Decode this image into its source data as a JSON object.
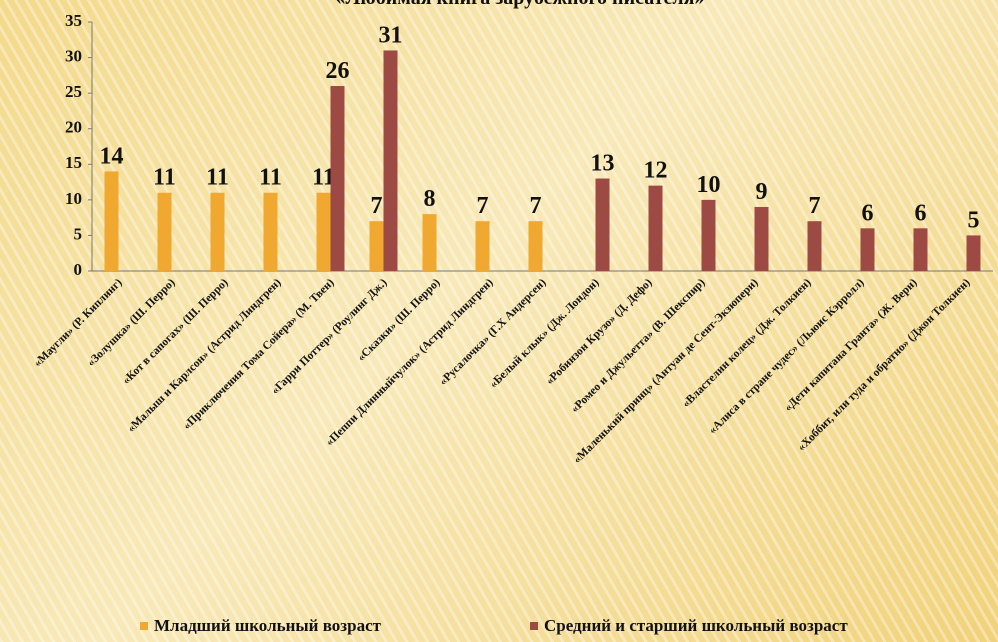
{
  "chart_data": {
    "type": "bar",
    "title": "«Любимая книга зарубежного писателя»",
    "categories": [
      "«Маугли» (Р. Киплинг)",
      "«Золушка» (Ш. Перро)",
      "«Кот в сапогах» (Ш. Перро)",
      "«Малыш и Карлсон» (Астрид Линдгрен)",
      "«Приключения Тома Сойера» (М. Твен)",
      "«Гарри Поттер» (Роулинг Дж.)",
      "«Сказки» (Ш. Перро)",
      "«Пеппи Длинныйчулок» (Астрид Линдгрен)",
      "«Русалочка» (Г.Х Андерсен)",
      "«Белый клык» (Дж. Лондон)",
      "«Робинзон Крузо» (Д. Дефо)",
      "«Ромео и Джульетта» (В. Шекспир)",
      "«Маленький принц» (Антуан де Сент-Экзюпери)",
      "«Властелин колец» (Дж. Толкиен)",
      "«Алиса в стране чудес» (Льюис Кэрролл)",
      "«Дети капитана Гранта» (Ж. Верн)",
      "«Хоббит, или туда и обратно» (Джон Толкиен)"
    ],
    "series": [
      {
        "name": "Младший школьный возраст",
        "color": "#f0a830",
        "values": [
          14,
          11,
          11,
          11,
          11,
          7,
          8,
          7,
          7,
          null,
          null,
          null,
          null,
          null,
          null,
          null,
          null
        ]
      },
      {
        "name": "Средний и старший школьный возраст",
        "color": "#9e4a44",
        "values": [
          null,
          null,
          null,
          null,
          26,
          31,
          null,
          null,
          null,
          13,
          12,
          10,
          9,
          7,
          6,
          6,
          5
        ]
      }
    ],
    "ylim": [
      0,
      35
    ],
    "yticks": [
      0,
      5,
      10,
      15,
      20,
      25,
      30,
      35
    ],
    "grid": false,
    "legend": "bottom"
  }
}
